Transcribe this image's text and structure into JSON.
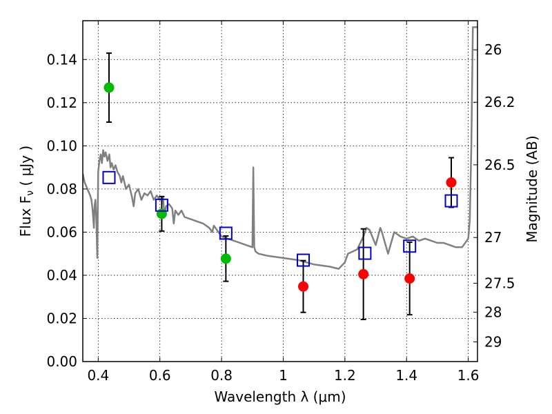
{
  "chart_data": {
    "type": "scatter",
    "xlabel": "Wavelength  λ (μm)",
    "ylabel": "Flux  F",
    "ylabel_sub": "ν",
    "ylabel_unit": " ( μJy )",
    "y2label": "Magnitude (AB)",
    "xlim": [
      0.35,
      1.63
    ],
    "ylim": [
      0.0,
      0.158
    ],
    "grid": true,
    "x_ticks": [
      {
        "v": 0.4,
        "label": "0.4"
      },
      {
        "v": 0.6,
        "label": "0.6"
      },
      {
        "v": 0.8,
        "label": "0.8"
      },
      {
        "v": 1.0,
        "label": "1"
      },
      {
        "v": 1.2,
        "label": "1.2"
      },
      {
        "v": 1.4,
        "label": "1.4"
      },
      {
        "v": 1.6,
        "label": "1.6"
      }
    ],
    "y_ticks": [
      {
        "v": 0.0,
        "label": "0.00"
      },
      {
        "v": 0.02,
        "label": "0.02"
      },
      {
        "v": 0.04,
        "label": "0.04"
      },
      {
        "v": 0.06,
        "label": "0.06"
      },
      {
        "v": 0.08,
        "label": "0.08"
      },
      {
        "v": 0.1,
        "label": "0.10"
      },
      {
        "v": 0.12,
        "label": "0.12"
      },
      {
        "v": 0.14,
        "label": "0.14"
      }
    ],
    "y2_ticks": [
      {
        "flux": 0.1445,
        "label": "26"
      },
      {
        "flux": 0.1202,
        "label": "26.2"
      },
      {
        "flux": 0.0912,
        "label": "26.5"
      },
      {
        "flux": 0.0575,
        "label": "27"
      },
      {
        "flux": 0.0363,
        "label": "27.5"
      },
      {
        "flux": 0.0229,
        "label": "28"
      },
      {
        "flux": 0.0091,
        "label": "29"
      }
    ],
    "series": [
      {
        "marker": "circle",
        "color": "#00bb00",
        "points": [
          {
            "x": 0.435,
            "y": 0.127,
            "err_lo": 0.111,
            "err_hi": 0.143
          },
          {
            "x": 0.606,
            "y": 0.0685,
            "err_lo": 0.0605,
            "err_hi": 0.0765
          },
          {
            "x": 0.814,
            "y": 0.0477,
            "err_lo": 0.0372,
            "err_hi": 0.0582
          }
        ]
      },
      {
        "marker": "circle",
        "color": "#ff0000",
        "points": [
          {
            "x": 1.065,
            "y": 0.0348,
            "err_lo": 0.0228,
            "err_hi": 0.0468
          },
          {
            "x": 1.26,
            "y": 0.0405,
            "err_lo": 0.0195,
            "err_hi": 0.0615
          },
          {
            "x": 1.41,
            "y": 0.0385,
            "err_lo": 0.0217,
            "err_hi": 0.0553
          },
          {
            "x": 1.545,
            "y": 0.083,
            "err_lo": 0.0715,
            "err_hi": 0.0945
          }
        ]
      },
      {
        "marker": "square",
        "color": "#0000cc",
        "points": [
          {
            "x": 0.435,
            "y": 0.0853
          },
          {
            "x": 0.606,
            "y": 0.0725
          },
          {
            "x": 0.814,
            "y": 0.0595
          },
          {
            "x": 1.065,
            "y": 0.047
          },
          {
            "x": 1.265,
            "y": 0.0502
          },
          {
            "x": 1.41,
            "y": 0.0535
          },
          {
            "x": 1.545,
            "y": 0.0745
          }
        ]
      },
      {
        "type": "line",
        "color": "#808080",
        "x": [
          0.35,
          0.356,
          0.362,
          0.368,
          0.374,
          0.378,
          0.382,
          0.386,
          0.388,
          0.391,
          0.394,
          0.397,
          0.4,
          0.404,
          0.408,
          0.412,
          0.416,
          0.42,
          0.424,
          0.43,
          0.436,
          0.44,
          0.444,
          0.45,
          0.456,
          0.462,
          0.47,
          0.475,
          0.48,
          0.49,
          0.5,
          0.51,
          0.515,
          0.52,
          0.53,
          0.54,
          0.55,
          0.56,
          0.57,
          0.58,
          0.59,
          0.6,
          0.61,
          0.615,
          0.62,
          0.63,
          0.64,
          0.645,
          0.65,
          0.66,
          0.67,
          0.68,
          0.7,
          0.72,
          0.74,
          0.76,
          0.77,
          0.775,
          0.78,
          0.8,
          0.82,
          0.84,
          0.86,
          0.88,
          0.9,
          0.903,
          0.906,
          0.91,
          0.92,
          0.95,
          1.0,
          1.05,
          1.1,
          1.15,
          1.18,
          1.2,
          1.21,
          1.24,
          1.26,
          1.27,
          1.28,
          1.3,
          1.315,
          1.32,
          1.34,
          1.36,
          1.38,
          1.4,
          1.42,
          1.44,
          1.46,
          1.48,
          1.5,
          1.52,
          1.54,
          1.56,
          1.58,
          1.6,
          1.605,
          1.61,
          1.615,
          1.63
        ],
        "y": [
          0.087,
          0.083,
          0.081,
          0.079,
          0.077,
          0.075,
          0.07,
          0.062,
          0.072,
          0.075,
          0.065,
          0.048,
          0.088,
          0.093,
          0.096,
          0.092,
          0.098,
          0.095,
          0.097,
          0.093,
          0.096,
          0.09,
          0.092,
          0.089,
          0.091,
          0.088,
          0.086,
          0.083,
          0.086,
          0.08,
          0.082,
          0.076,
          0.072,
          0.078,
          0.08,
          0.075,
          0.078,
          0.077,
          0.079,
          0.075,
          0.077,
          0.075,
          0.076,
          0.068,
          0.072,
          0.073,
          0.071,
          0.064,
          0.07,
          0.068,
          0.07,
          0.067,
          0.066,
          0.065,
          0.064,
          0.062,
          0.06,
          0.063,
          0.062,
          0.058,
          0.057,
          0.056,
          0.055,
          0.054,
          0.053,
          0.09,
          0.053,
          0.051,
          0.05,
          0.049,
          0.048,
          0.047,
          0.045,
          0.044,
          0.043,
          0.046,
          0.05,
          0.052,
          0.058,
          0.062,
          0.061,
          0.054,
          0.062,
          0.06,
          0.05,
          0.06,
          0.058,
          0.057,
          0.058,
          0.056,
          0.057,
          0.056,
          0.055,
          0.055,
          0.054,
          0.053,
          0.053,
          0.057,
          0.065,
          0.1,
          0.155,
          0.155
        ]
      }
    ]
  }
}
